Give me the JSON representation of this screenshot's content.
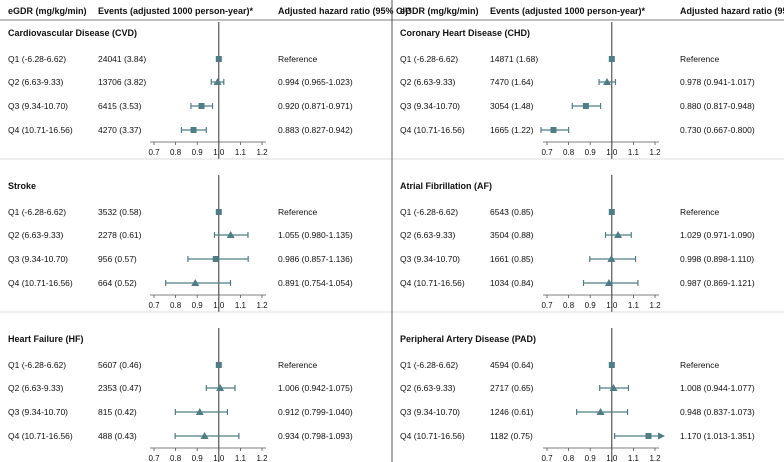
{
  "header": {
    "col1": "eGDR (mg/kg/min)",
    "col2": "Events (adjusted 1000 person-year)*",
    "col3": "Adjusted hazard ratio (95% CI)*"
  },
  "colors": {
    "marker": "#4e7d86",
    "line": "#4e7d86",
    "divider": "#555555"
  },
  "chart_data": [
    {
      "type": "forest",
      "title": "Cardiovascular Disease (CVD)",
      "xlim": [
        0.7,
        1.2
      ],
      "reference": 1.0,
      "ticks": [
        "0.7",
        "0.8",
        "0.9",
        "1.0",
        "1.1",
        "1.2"
      ],
      "rows": [
        {
          "label": "Q1 (-6.28-6.62)",
          "events": "24041 (3.84)",
          "hr_text": "Reference",
          "hr": 1.0,
          "lo": 1.0,
          "hi": 1.0,
          "marker": "square"
        },
        {
          "label": "Q2 (6.63-9.33)",
          "events": "13706 (3.82)",
          "hr_text": "0.994 (0.965-1.023)",
          "hr": 0.994,
          "lo": 0.965,
          "hi": 1.023,
          "marker": "triangle"
        },
        {
          "label": "Q3 (9.34-10.70)",
          "events": "6415 (3.53)",
          "hr_text": "0.920 (0.871-0.971)",
          "hr": 0.92,
          "lo": 0.871,
          "hi": 0.971,
          "marker": "square"
        },
        {
          "label": "Q4 (10.71-16.56)",
          "events": "4270 (3.37)",
          "hr_text": "0.883 (0.827-0.942)",
          "hr": 0.883,
          "lo": 0.827,
          "hi": 0.942,
          "marker": "square"
        }
      ]
    },
    {
      "type": "forest",
      "title": "Coronary Heart Disease (CHD)",
      "xlim": [
        0.7,
        1.2
      ],
      "reference": 1.0,
      "ticks": [
        "0.7",
        "0.8",
        "0.9",
        "1.0",
        "1.1",
        "1.2"
      ],
      "rows": [
        {
          "label": "Q1 (-6.28-6.62)",
          "events": "14871 (1.68)",
          "hr_text": "Reference",
          "hr": 1.0,
          "lo": 1.0,
          "hi": 1.0,
          "marker": "square"
        },
        {
          "label": "Q2 (6.63-9.33)",
          "events": "7470 (1.64)",
          "hr_text": "0.978 (0.941-1.017)",
          "hr": 0.978,
          "lo": 0.941,
          "hi": 1.017,
          "marker": "triangle"
        },
        {
          "label": "Q3 (9.34-10.70)",
          "events": "3054 (1.48)",
          "hr_text": "0.880 (0.817-0.948)",
          "hr": 0.88,
          "lo": 0.817,
          "hi": 0.948,
          "marker": "square"
        },
        {
          "label": "Q4 (10.71-16.56)",
          "events": "1665 (1.22)",
          "hr_text": "0.730 (0.667-0.800)",
          "hr": 0.73,
          "lo": 0.667,
          "hi": 0.8,
          "marker": "square"
        }
      ]
    },
    {
      "type": "forest",
      "title": "Stroke",
      "xlim": [
        0.7,
        1.2
      ],
      "reference": 1.0,
      "ticks": [
        "0.7",
        "0.8",
        "0.9",
        "1.0",
        "1.1",
        "1.2"
      ],
      "rows": [
        {
          "label": "Q1 (-6.28-6.62)",
          "events": "3532 (0.58)",
          "hr_text": "Reference",
          "hr": 1.0,
          "lo": 1.0,
          "hi": 1.0,
          "marker": "square"
        },
        {
          "label": "Q2 (6.63-9.33)",
          "events": "2278 (0.61)",
          "hr_text": "1.055 (0.980-1.135)",
          "hr": 1.055,
          "lo": 0.98,
          "hi": 1.135,
          "marker": "triangle"
        },
        {
          "label": "Q3 (9.34-10.70)",
          "events": "956 (0.57)",
          "hr_text": "0.986 (0.857-1.136)",
          "hr": 0.986,
          "lo": 0.857,
          "hi": 1.136,
          "marker": "square"
        },
        {
          "label": "Q4 (10.71-16.56)",
          "events": "664 (0.52)",
          "hr_text": "0.891 (0.754-1.054)",
          "hr": 0.891,
          "lo": 0.754,
          "hi": 1.054,
          "marker": "triangle"
        }
      ]
    },
    {
      "type": "forest",
      "title": "Atrial Fibrillation (AF)",
      "xlim": [
        0.7,
        1.2
      ],
      "reference": 1.0,
      "ticks": [
        "0.7",
        "0.8",
        "0.9",
        "1.0",
        "1.1",
        "1.2"
      ],
      "rows": [
        {
          "label": "Q1 (-6.28-6.62)",
          "events": "6543 (0.85)",
          "hr_text": "Reference",
          "hr": 1.0,
          "lo": 1.0,
          "hi": 1.0,
          "marker": "square"
        },
        {
          "label": "Q2 (6.63-9.33)",
          "events": "3504 (0.88)",
          "hr_text": "1.029 (0.971-1.090)",
          "hr": 1.029,
          "lo": 0.971,
          "hi": 1.09,
          "marker": "triangle"
        },
        {
          "label": "Q3 (9.34-10.70)",
          "events": "1661 (0.85)",
          "hr_text": "0.998 (0.898-1.110)",
          "hr": 0.998,
          "lo": 0.898,
          "hi": 1.11,
          "marker": "triangle"
        },
        {
          "label": "Q4 (10.71-16.56)",
          "events": "1034 (0.84)",
          "hr_text": "0.987 (0.869-1.121)",
          "hr": 0.987,
          "lo": 0.869,
          "hi": 1.121,
          "marker": "triangle"
        }
      ]
    },
    {
      "type": "forest",
      "title": "Heart Failure (HF)",
      "xlim": [
        0.7,
        1.2
      ],
      "reference": 1.0,
      "ticks": [
        "0.7",
        "0.8",
        "0.9",
        "1.0",
        "1.1",
        "1.2"
      ],
      "rows": [
        {
          "label": "Q1 (-6.28-6.62)",
          "events": "5607 (0.46)",
          "hr_text": "Reference",
          "hr": 1.0,
          "lo": 1.0,
          "hi": 1.0,
          "marker": "square"
        },
        {
          "label": "Q2 (6.63-9.33)",
          "events": "2353 (0.47)",
          "hr_text": "1.006 (0.942-1.075)",
          "hr": 1.006,
          "lo": 0.942,
          "hi": 1.075,
          "marker": "triangle"
        },
        {
          "label": "Q3 (9.34-10.70)",
          "events": "815 (0.42)",
          "hr_text": "0.912 (0.799-1.040)",
          "hr": 0.912,
          "lo": 0.799,
          "hi": 1.04,
          "marker": "triangle"
        },
        {
          "label": "Q4 (10.71-16.56)",
          "events": "488 (0.43)",
          "hr_text": "0.934 (0.798-1.093)",
          "hr": 0.934,
          "lo": 0.798,
          "hi": 1.093,
          "marker": "triangle"
        }
      ]
    },
    {
      "type": "forest",
      "title": "Peripheral Artery Disease (PAD)",
      "xlim": [
        0.7,
        1.2
      ],
      "reference": 1.0,
      "ticks": [
        "0.7",
        "0.8",
        "0.9",
        "1.0",
        "1.1",
        "1.2"
      ],
      "rows": [
        {
          "label": "Q1 (-6.28-6.62)",
          "events": "4594 (0.64)",
          "hr_text": "Reference",
          "hr": 1.0,
          "lo": 1.0,
          "hi": 1.0,
          "marker": "square"
        },
        {
          "label": "Q2 (6.63-9.33)",
          "events": "2717 (0.65)",
          "hr_text": "1.008 (0.944-1.077)",
          "hr": 1.008,
          "lo": 0.944,
          "hi": 1.077,
          "marker": "triangle"
        },
        {
          "label": "Q3 (9.34-10.70)",
          "events": "1246 (0.61)",
          "hr_text": "0.948 (0.837-1.073)",
          "hr": 0.948,
          "lo": 0.837,
          "hi": 1.073,
          "marker": "triangle"
        },
        {
          "label": "Q4 (10.71-16.56)",
          "events": "1182 (0.75)",
          "hr_text": "1.170 (1.013-1.351)",
          "hr": 1.17,
          "lo": 1.013,
          "hi": 1.351,
          "marker": "square",
          "arrow_right": true
        }
      ]
    }
  ]
}
